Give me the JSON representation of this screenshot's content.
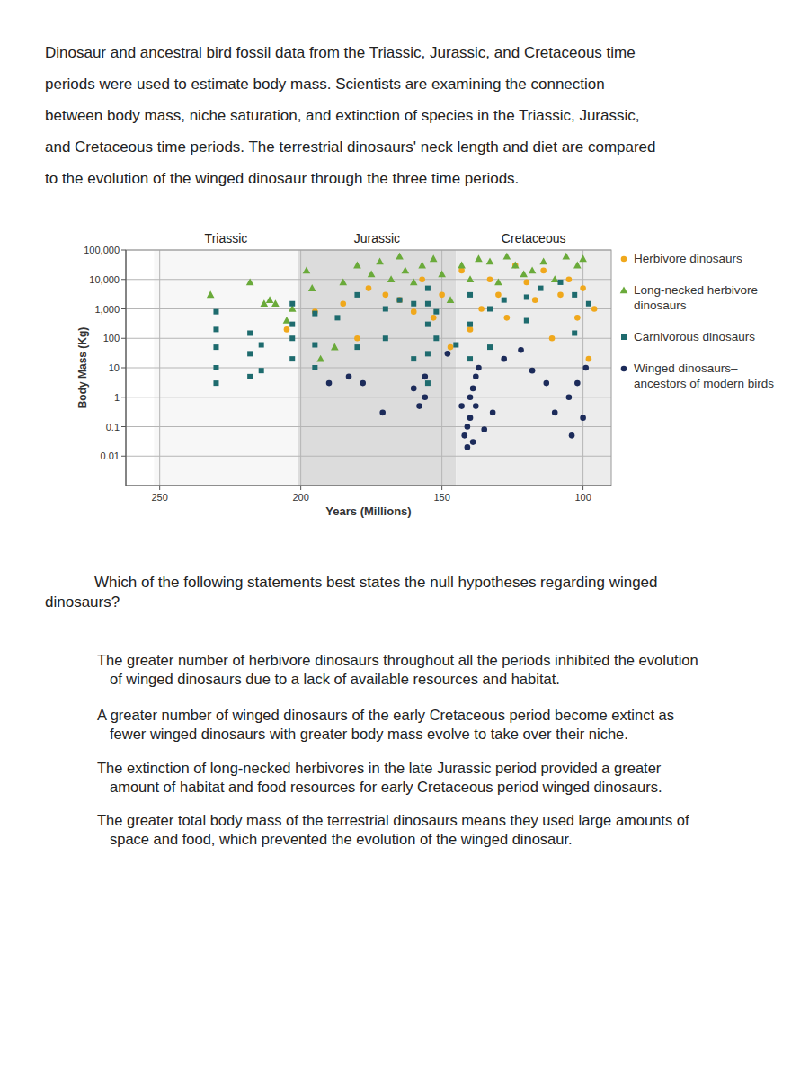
{
  "intro": [
    "Dinosaur and ancestral bird fossil data from the Triassic, Jurassic, and Cretaceous time",
    "periods were used to estimate body mass. Scientists are examining the connection",
    "between body mass, niche saturation, and extinction of species in the Triassic, Jurassic,",
    "and Cretaceous time periods. The terrestrial dinosaurs' neck length and diet are compared",
    "to the evolution of the winged dinosaur through the three time periods."
  ],
  "chart_data": {
    "type": "scatter",
    "xlabel": "Years (Millions)",
    "ylabel": "Body Mass (Kg)",
    "xlim": [
      262,
      90
    ],
    "ylim": [
      0.001,
      100000
    ],
    "xticks": [
      250,
      200,
      150,
      100
    ],
    "yticks": [
      {
        "value": 100000,
        "label": "100,000"
      },
      {
        "value": 10000,
        "label": "10,000"
      },
      {
        "value": 1000,
        "label": "1,000"
      },
      100,
      10,
      1,
      0.1,
      0.01
    ],
    "log": "y",
    "grid": true,
    "legend": "right",
    "periods": [
      {
        "name": "Triassic",
        "start": 252,
        "end": 201
      },
      {
        "name": "Jurassic",
        "start": 201,
        "end": 145
      },
      {
        "name": "Cretaceous",
        "start": 145,
        "end": 90
      }
    ],
    "series": [
      {
        "name": "Herbivore dinosaurs",
        "color": "#f0a81c",
        "marker": "circle",
        "x": [
          205,
          195,
          185,
          180,
          176,
          170,
          165,
          160,
          157,
          153,
          150,
          147,
          143,
          140,
          136,
          133,
          130,
          127,
          124,
          120,
          117,
          114,
          111,
          108,
          105,
          102,
          100,
          98,
          96
        ],
        "values": [
          200,
          800,
          1500,
          100,
          5000,
          3000,
          2000,
          800,
          10000,
          500,
          3000,
          50,
          20000,
          200,
          1000,
          10000,
          3000,
          500,
          30000,
          8000,
          2000,
          20000,
          100,
          3000,
          10000,
          500,
          5000,
          20,
          1000
        ]
      },
      {
        "name": "Long-necked herbivore dinosaurs",
        "color": "#6aaa3a",
        "marker": "triangle",
        "x": [
          232,
          218,
          213,
          211,
          209,
          205,
          203,
          198,
          196,
          193,
          188,
          185,
          180,
          175,
          172,
          168,
          165,
          163,
          160,
          157,
          153,
          150,
          147,
          143,
          140,
          137,
          133,
          130,
          127,
          124,
          121,
          118,
          114,
          110,
          106,
          102,
          100
        ],
        "values": [
          3000,
          8000,
          1500,
          2000,
          1500,
          400,
          1000,
          20000,
          5000,
          20,
          50,
          8000,
          30000,
          15000,
          40000,
          10000,
          60000,
          20000,
          8000,
          30000,
          50000,
          15000,
          2000,
          30000,
          10000,
          50000,
          40000,
          8000,
          60000,
          30000,
          15000,
          20000,
          40000,
          10000,
          60000,
          30000,
          50000
        ]
      },
      {
        "name": "Carnivorous dinosaurs",
        "color": "#1e6b6e",
        "marker": "square",
        "x": [
          230,
          230,
          230,
          230,
          230,
          218,
          218,
          218,
          214,
          214,
          203,
          203,
          203,
          203,
          195,
          195,
          195,
          187,
          180,
          180,
          170,
          170,
          165,
          160,
          160,
          155,
          155,
          155,
          155,
          155,
          152,
          152,
          145,
          140,
          140,
          140,
          133,
          133,
          128,
          120,
          120,
          115,
          108,
          103,
          103,
          98
        ],
        "values": [
          800,
          200,
          50,
          10,
          3,
          150,
          30,
          5,
          60,
          8,
          1500,
          300,
          100,
          20,
          700,
          60,
          10,
          500,
          3000,
          50,
          1000,
          100,
          2000,
          1500,
          20,
          5000,
          1500,
          300,
          30,
          3,
          800,
          100,
          60,
          3000,
          300,
          20,
          1000,
          50,
          2000,
          2500,
          400,
          5000,
          8000,
          3000,
          150,
          1500
        ]
      },
      {
        "name": "Winged dinosaurs– ancestors of modern birds",
        "color": "#1c2b5a",
        "marker": "circle",
        "x": [
          190,
          183,
          178,
          171,
          160,
          158,
          156,
          156,
          148,
          143,
          142,
          141,
          141,
          140,
          140,
          139,
          139,
          138,
          138,
          137,
          135,
          132,
          128,
          122,
          118,
          113,
          110,
          105,
          104,
          102,
          100,
          99
        ],
        "values": [
          3,
          5,
          3,
          0.3,
          2,
          0.5,
          5,
          1,
          30,
          0.5,
          0.05,
          0.02,
          0.1,
          0.2,
          1,
          2,
          0.03,
          0.5,
          5,
          10,
          0.08,
          0.3,
          20,
          40,
          8,
          3,
          0.3,
          1,
          0.05,
          3,
          0.2,
          10
        ]
      }
    ]
  },
  "question": [
    "Which of the following statements best states the null hypotheses regarding winged",
    "dinosaurs?"
  ],
  "options": [
    [
      "The greater number of herbivore dinosaurs throughout all the periods inhibited the evolution",
      "of winged dinosaurs due to a lack of available resources and habitat."
    ],
    [
      "A greater number of winged dinosaurs of the early Cretaceous period become extinct as",
      "fewer winged dinosaurs with greater body mass evolve to take over their niche."
    ],
    [
      "The extinction of long-necked herbivores in the late Jurassic period provided a greater",
      "amount of habitat and food resources for early Cretaceous period winged dinosaurs."
    ],
    [
      "The greater total body mass of the terrestrial dinosaurs means they used large amounts of",
      "space and food, which prevented the evolution of the winged dinosaur."
    ]
  ]
}
